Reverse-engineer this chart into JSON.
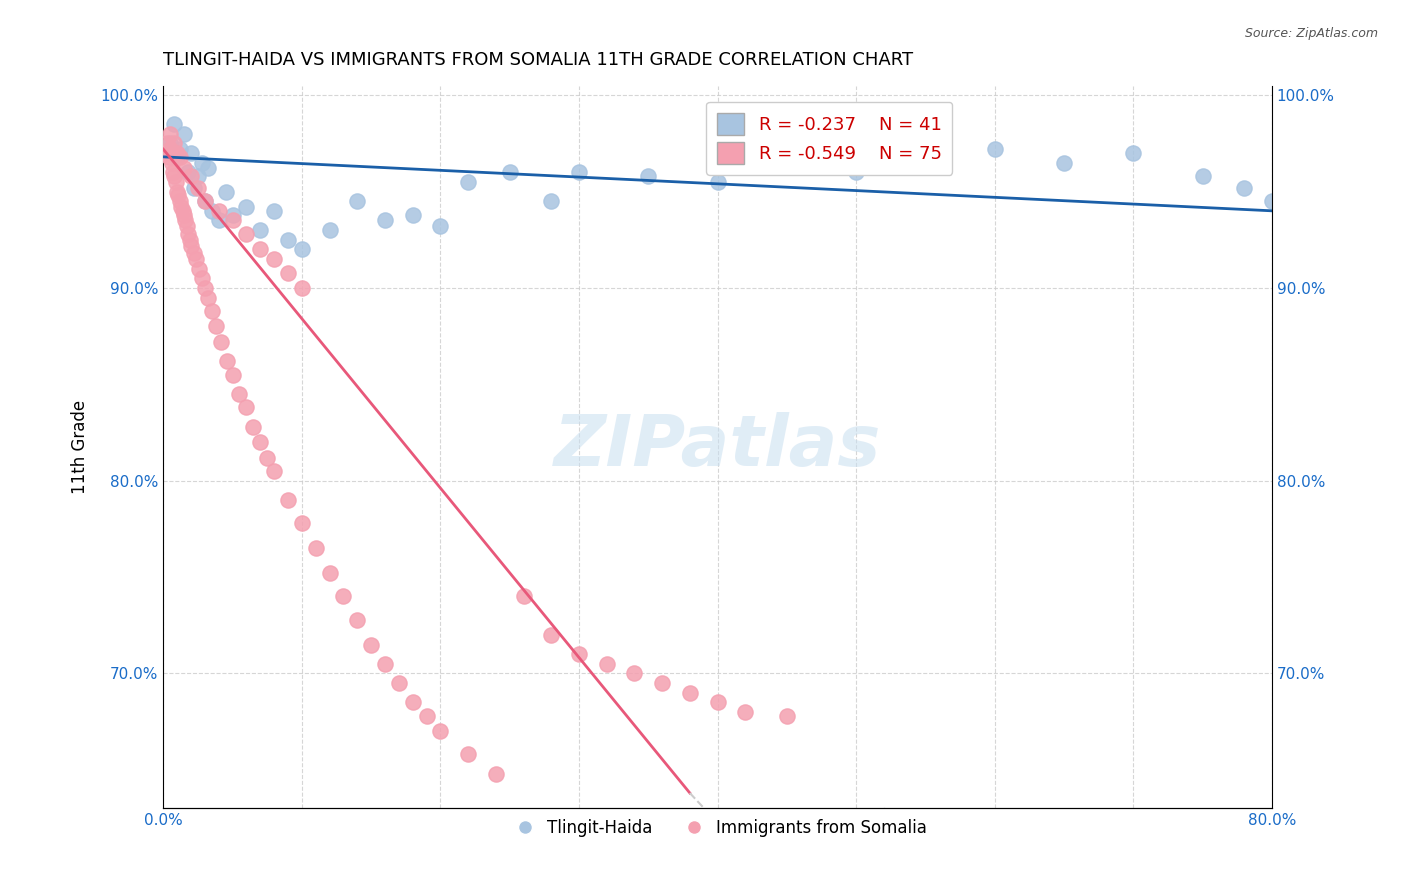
{
  "title": "TLINGIT-HAIDA VS IMMIGRANTS FROM SOMALIA 11TH GRADE CORRELATION CHART",
  "source": "Source: ZipAtlas.com",
  "xlabel_bottom": "",
  "ylabel": "11th Grade",
  "x_bottom_label": "",
  "xlim": [
    0.0,
    0.8
  ],
  "ylim": [
    0.63,
    1.005
  ],
  "x_ticks": [
    0.0,
    0.1,
    0.2,
    0.3,
    0.4,
    0.5,
    0.6,
    0.7,
    0.8
  ],
  "x_tick_labels": [
    "0.0%",
    "",
    "",
    "",
    "",
    "",
    "",
    "",
    "80.0%"
  ],
  "y_ticks": [
    0.7,
    0.8,
    0.9,
    1.0
  ],
  "y_tick_labels": [
    "70.0%",
    "80.0%",
    "90.0%",
    "100.0%"
  ],
  "legend_R_blue": "R = -0.237",
  "legend_N_blue": "N = 41",
  "legend_R_pink": "R = -0.549",
  "legend_N_pink": "N = 75",
  "blue_color": "#a8c4e0",
  "pink_color": "#f4a0b0",
  "blue_line_color": "#1a5fa8",
  "pink_line_color": "#e8587a",
  "watermark": "ZIPatlas",
  "blue_scatter_x": [
    0.005,
    0.008,
    0.01,
    0.012,
    0.015,
    0.018,
    0.02,
    0.022,
    0.025,
    0.028,
    0.03,
    0.032,
    0.035,
    0.04,
    0.045,
    0.05,
    0.06,
    0.07,
    0.08,
    0.09,
    0.1,
    0.12,
    0.14,
    0.16,
    0.18,
    0.2,
    0.22,
    0.25,
    0.28,
    0.3,
    0.35,
    0.4,
    0.45,
    0.5,
    0.55,
    0.6,
    0.65,
    0.7,
    0.75,
    0.78,
    0.8
  ],
  "blue_scatter_y": [
    0.975,
    0.985,
    0.968,
    0.972,
    0.98,
    0.96,
    0.97,
    0.952,
    0.958,
    0.965,
    0.945,
    0.962,
    0.94,
    0.935,
    0.95,
    0.938,
    0.942,
    0.93,
    0.94,
    0.925,
    0.92,
    0.93,
    0.945,
    0.935,
    0.938,
    0.932,
    0.955,
    0.96,
    0.945,
    0.96,
    0.958,
    0.955,
    0.965,
    0.96,
    0.968,
    0.972,
    0.965,
    0.97,
    0.958,
    0.952,
    0.945
  ],
  "pink_scatter_x": [
    0.002,
    0.003,
    0.004,
    0.005,
    0.006,
    0.007,
    0.008,
    0.009,
    0.01,
    0.011,
    0.012,
    0.013,
    0.014,
    0.015,
    0.016,
    0.017,
    0.018,
    0.019,
    0.02,
    0.022,
    0.024,
    0.026,
    0.028,
    0.03,
    0.032,
    0.035,
    0.038,
    0.042,
    0.046,
    0.05,
    0.055,
    0.06,
    0.065,
    0.07,
    0.075,
    0.08,
    0.09,
    0.1,
    0.11,
    0.12,
    0.13,
    0.14,
    0.15,
    0.16,
    0.17,
    0.18,
    0.19,
    0.2,
    0.22,
    0.24,
    0.26,
    0.28,
    0.3,
    0.32,
    0.34,
    0.36,
    0.38,
    0.4,
    0.42,
    0.45,
    0.005,
    0.008,
    0.01,
    0.012,
    0.015,
    0.02,
    0.025,
    0.03,
    0.04,
    0.05,
    0.06,
    0.07,
    0.08,
    0.09,
    0.1
  ],
  "pink_scatter_y": [
    0.97,
    0.975,
    0.968,
    0.972,
    0.965,
    0.96,
    0.958,
    0.955,
    0.95,
    0.948,
    0.945,
    0.942,
    0.94,
    0.938,
    0.935,
    0.932,
    0.928,
    0.925,
    0.922,
    0.918,
    0.915,
    0.91,
    0.905,
    0.9,
    0.895,
    0.888,
    0.88,
    0.872,
    0.862,
    0.855,
    0.845,
    0.838,
    0.828,
    0.82,
    0.812,
    0.805,
    0.79,
    0.778,
    0.765,
    0.752,
    0.74,
    0.728,
    0.715,
    0.705,
    0.695,
    0.685,
    0.678,
    0.67,
    0.658,
    0.648,
    0.74,
    0.72,
    0.71,
    0.705,
    0.7,
    0.695,
    0.69,
    0.685,
    0.68,
    0.678,
    0.98,
    0.975,
    0.97,
    0.968,
    0.962,
    0.958,
    0.952,
    0.945,
    0.94,
    0.935,
    0.928,
    0.92,
    0.915,
    0.908,
    0.9
  ]
}
